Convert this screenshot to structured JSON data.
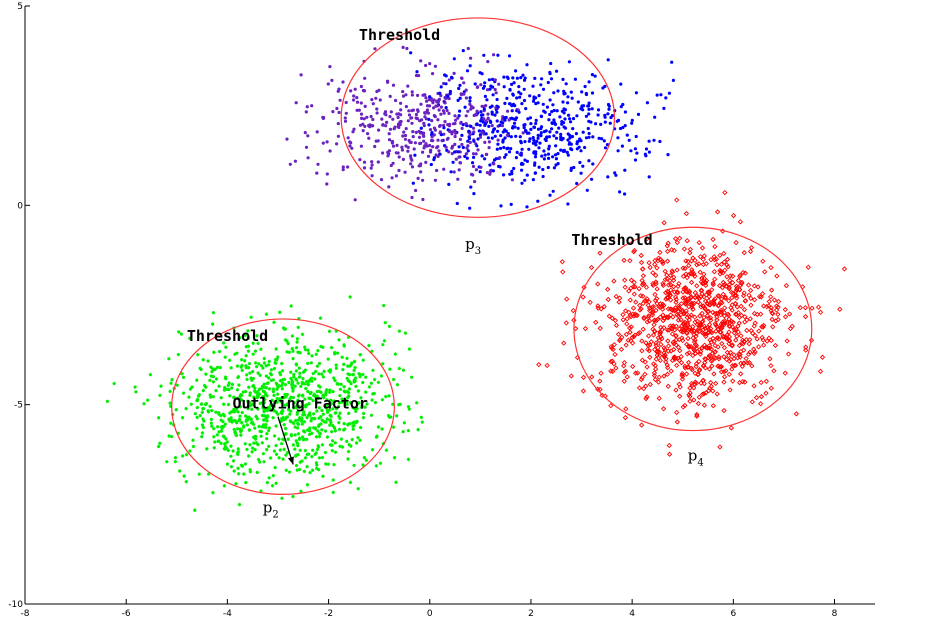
{
  "chart_data": {
    "type": "scatter",
    "xlim": [
      -8,
      8.8
    ],
    "ylim": [
      -10,
      5
    ],
    "x_ticks": [
      -8,
      -6,
      -4,
      -2,
      0,
      2,
      4,
      6,
      8
    ],
    "y_ticks": [
      5,
      0,
      -5,
      -10
    ],
    "grid": false,
    "series": [
      {
        "color": "#0000ff",
        "color2": "#6a22c0",
        "marker": "dot",
        "count": 1000,
        "center": [
          1.0,
          2.0
        ],
        "spread": [
          1.6,
          0.75
        ],
        "x_extent": [
          -2.9,
          4.9
        ],
        "y_extent": [
          -0.4,
          4.0
        ]
      },
      {
        "color": "#ff0000",
        "marker": "diamond",
        "count": 1000,
        "center": [
          5.2,
          -3.0
        ],
        "spread": [
          0.95,
          1.0
        ],
        "x_extent": [
          1.9,
          8.6
        ],
        "y_extent": [
          -6.6,
          0.5
        ]
      },
      {
        "color": "#00ee00",
        "marker": "asterisk",
        "count": 1000,
        "center": [
          -2.9,
          -5.0
        ],
        "spread": [
          1.05,
          0.9
        ],
        "x_extent": [
          -6.6,
          -0.1
        ],
        "y_extent": [
          -8.0,
          -1.8
        ]
      }
    ],
    "thresholds": [
      {
        "center": [
          0.95,
          2.2
        ],
        "radius": [
          2.7,
          2.5
        ],
        "color": "#ff3333"
      },
      {
        "center": [
          5.2,
          -3.1
        ],
        "radius": [
          2.35,
          2.55
        ],
        "color": "#ff3333"
      },
      {
        "center": [
          -2.9,
          -5.05
        ],
        "radius": [
          2.2,
          2.2
        ],
        "color": "#ff3333"
      }
    ],
    "annotations": [
      {
        "text": "Threshold",
        "x": -1.4,
        "y": 4.15
      },
      {
        "text": "Threshold",
        "x": 2.8,
        "y": -1.0
      },
      {
        "text": "Threshold",
        "x": -4.8,
        "y": -3.4
      },
      {
        "text": "Outlying Factor",
        "x": -3.9,
        "y": -5.1
      }
    ],
    "arrow": {
      "from": [
        -3.0,
        -5.3
      ],
      "to": [
        -2.7,
        -6.5
      ]
    },
    "point_labels": [
      {
        "base": "p",
        "sub": "3",
        "x": 0.7,
        "y": -1.1
      },
      {
        "base": "p",
        "sub": "4",
        "x": 5.1,
        "y": -6.4
      },
      {
        "base": "p",
        "sub": "2",
        "x": -3.3,
        "y": -7.7
      }
    ]
  }
}
